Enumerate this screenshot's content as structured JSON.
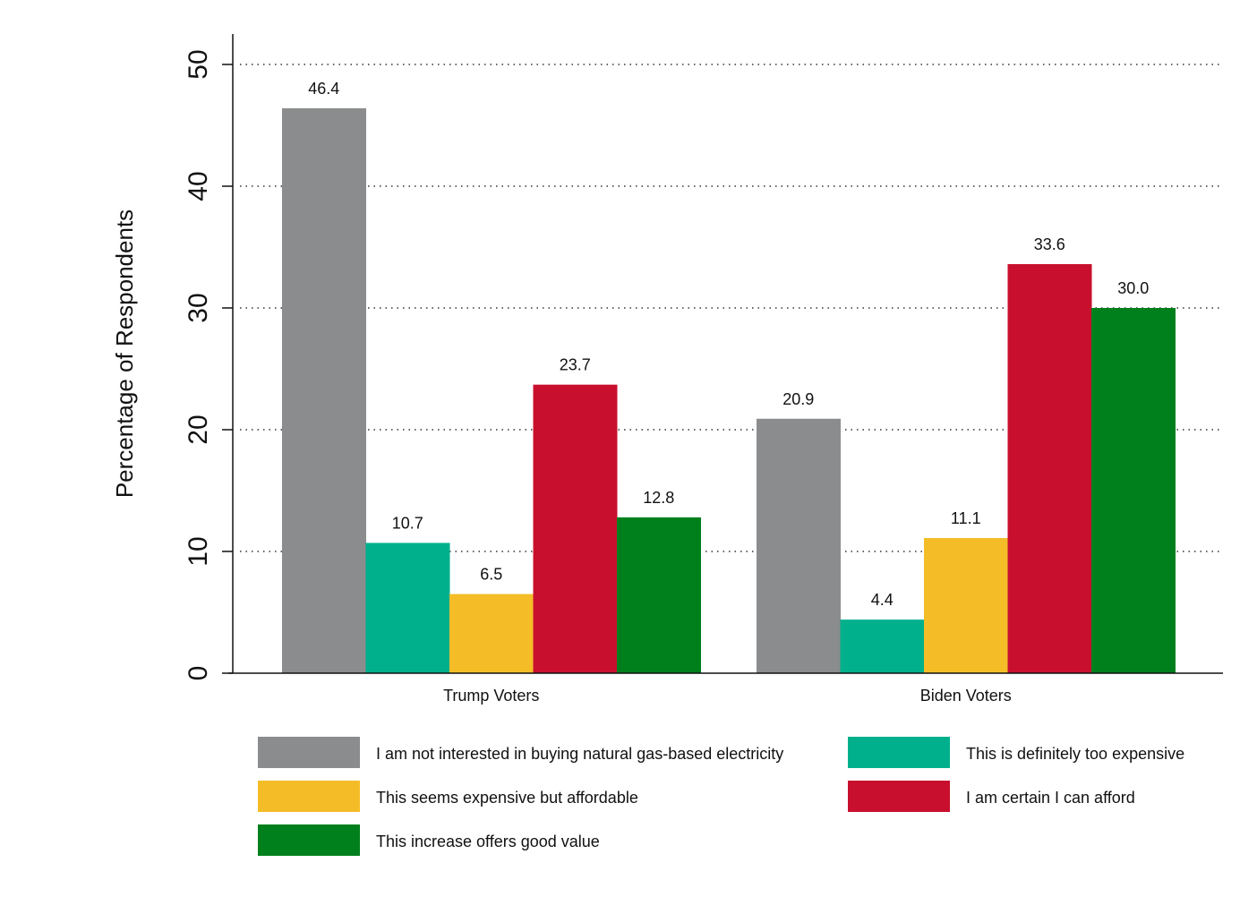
{
  "chart_data": {
    "type": "bar",
    "title": "",
    "xlabel": "",
    "ylabel": "Percentage of Respondents",
    "ylim": [
      0,
      50
    ],
    "yticks": [
      "0",
      "10",
      "20",
      "30",
      "40",
      "50"
    ],
    "grid": "horizontal dotted",
    "legend_position": "bottom",
    "categories": [
      "Trump Voters",
      "Biden Voters"
    ],
    "series": [
      {
        "name": "I am not interested in buying natural gas-based electricity",
        "color": "#8a8c8d",
        "values": [
          46.4,
          20.9
        ],
        "labels": [
          "46.4",
          "20.9"
        ]
      },
      {
        "name": "This is definitely too expensive",
        "color": "#00b08c",
        "values": [
          10.7,
          4.4
        ],
        "labels": [
          "10.7",
          "4.4"
        ]
      },
      {
        "name": "This seems expensive but affordable",
        "color": "#f4bd28",
        "values": [
          6.5,
          11.1
        ],
        "labels": [
          "6.5",
          "11.1"
        ]
      },
      {
        "name": "I am certain I can afford",
        "color": "#c8102e",
        "values": [
          23.7,
          33.6
        ],
        "labels": [
          "23.7",
          "33.6"
        ]
      },
      {
        "name": "This increase offers good value",
        "color": "#00801c",
        "values": [
          12.8,
          30.0
        ],
        "labels": [
          "12.8",
          "30.0"
        ]
      }
    ]
  }
}
